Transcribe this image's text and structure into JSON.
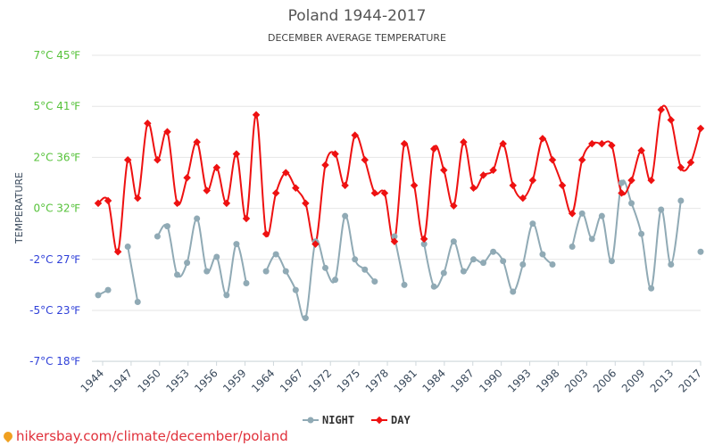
{
  "chart_data": {
    "type": "line",
    "title": "Poland 1944-2017",
    "subtitle": "DECEMBER AVERAGE TEMPERATURE",
    "ylabel": "TEMPERATURE",
    "xlabel": "",
    "ylim": [
      -7,
      7
    ],
    "y_ticks": [
      {
        "value": 7,
        "label": "7°C 45℉"
      },
      {
        "value": 5,
        "label": "5°C 41℉"
      },
      {
        "value": 2,
        "label": "2°C 36℉"
      },
      {
        "value": 0,
        "label": "0°C 32℉"
      },
      {
        "value": -2,
        "label": "-2°C 27℉"
      },
      {
        "value": -5,
        "label": "-5°C 23℉"
      },
      {
        "value": -7,
        "label": "-7°C 18℉"
      }
    ],
    "y_tick_color": "#56c23a",
    "y_tick_color_negative": "#2e3fd8",
    "x_tick_labels": [
      "1944",
      "1947",
      "1950",
      "1953",
      "1956",
      "1959",
      "1964",
      "1967",
      "1972",
      "1975",
      "1978",
      "1981",
      "1984",
      "1987",
      "1990",
      "1993",
      "1998",
      "2003",
      "2006",
      "2009",
      "2013",
      "2017"
    ],
    "grid": true,
    "legend_position": "bottom-center",
    "series": [
      {
        "name": "NIGHT",
        "color": "#90aab5",
        "values": [
          -4.1,
          -3.8,
          null,
          -1.5,
          -4.5,
          null,
          -1.1,
          -0.7,
          -2.9,
          -2.2,
          -0.4,
          -2.7,
          -1.9,
          -4.1,
          -1.4,
          -3.4,
          null,
          -2.7,
          -1.8,
          -2.7,
          -3.8,
          -5.3,
          -1.3,
          -2.5,
          -3.2,
          -0.3,
          -2.0,
          -2.6,
          -3.3,
          null,
          -1.1,
          -3.5,
          null,
          -1.4,
          -3.6,
          -2.8,
          -1.3,
          -2.7,
          -2.0,
          -2.2,
          -1.7,
          -2.1,
          -3.9,
          -2.3,
          -0.6,
          -1.8,
          -2.3,
          null,
          -1.5,
          -0.2,
          -1.2,
          -0.3,
          -2.1,
          1.0,
          0.2,
          -1.0,
          -3.7,
          -0.05,
          -2.3,
          0.3,
          null,
          -1.7
        ]
      },
      {
        "name": "DAY",
        "color": "#ee1111",
        "values": [
          0.2,
          0.3,
          -1.7,
          1.9,
          0.4,
          4.0,
          1.9,
          3.5,
          0.2,
          1.2,
          2.9,
          0.7,
          1.6,
          0.2,
          2.2,
          -0.4,
          4.5,
          -1.0,
          0.6,
          1.4,
          0.8,
          0.2,
          -1.4,
          1.7,
          2.2,
          0.9,
          3.3,
          1.9,
          0.6,
          0.6,
          -1.3,
          2.8,
          0.9,
          -1.2,
          2.5,
          1.5,
          0.1,
          2.9,
          0.8,
          1.3,
          1.5,
          2.8,
          0.9,
          0.4,
          1.1,
          3.1,
          1.9,
          0.9,
          -0.2,
          1.9,
          2.8,
          2.8,
          2.7,
          0.6,
          1.1,
          2.4,
          1.1,
          4.8,
          4.2,
          1.6,
          1.8,
          3.7
        ]
      }
    ]
  },
  "legend": {
    "night_label": "NIGHT",
    "day_label": "DAY"
  },
  "watermark": {
    "text": "hikersbay.com/climate/december/poland"
  }
}
